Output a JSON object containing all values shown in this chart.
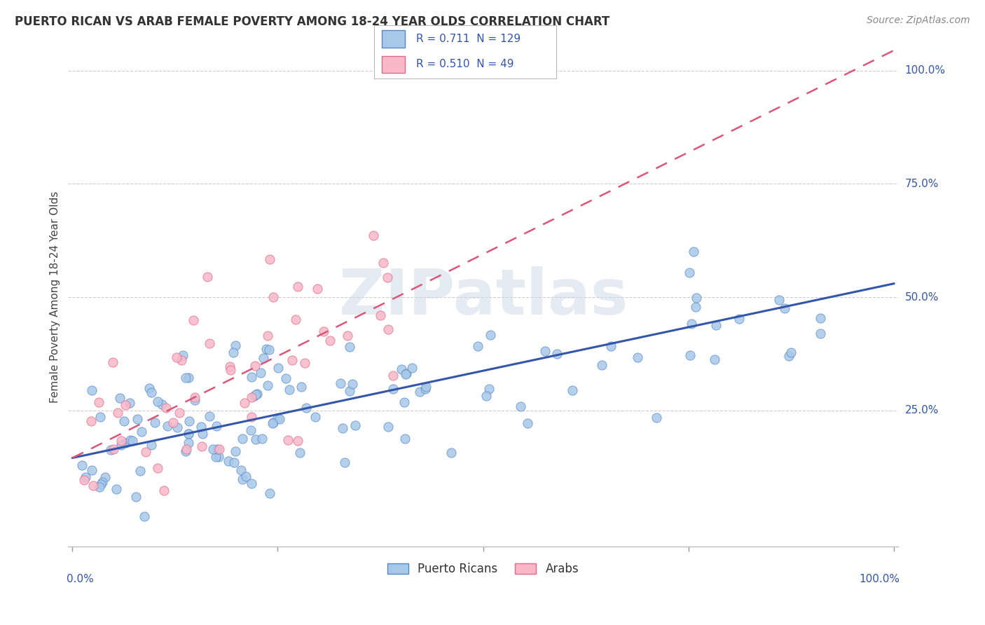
{
  "title": "PUERTO RICAN VS ARAB FEMALE POVERTY AMONG 18-24 YEAR OLDS CORRELATION CHART",
  "source": "Source: ZipAtlas.com",
  "ylabel": "Female Poverty Among 18-24 Year Olds",
  "watermark": "ZIPatlas",
  "legend_blue_R": "0.711",
  "legend_blue_N": "129",
  "legend_pink_R": "0.510",
  "legend_pink_N": "49",
  "blue_scatter_color": "#a8c8e8",
  "blue_edge_color": "#5588cc",
  "pink_scatter_color": "#f8b8c8",
  "pink_edge_color": "#e06888",
  "blue_line_color": "#3355aa",
  "pink_line_color": "#dd5577",
  "background_color": "#ffffff",
  "title_fontsize": 12,
  "source_fontsize": 10,
  "blue_line_intercept": 0.145,
  "blue_line_slope": 0.385,
  "pink_line_intercept": 0.145,
  "pink_line_slope": 0.9,
  "xmin": 0.0,
  "xmax": 1.0,
  "ymin": -0.05,
  "ymax": 1.05
}
